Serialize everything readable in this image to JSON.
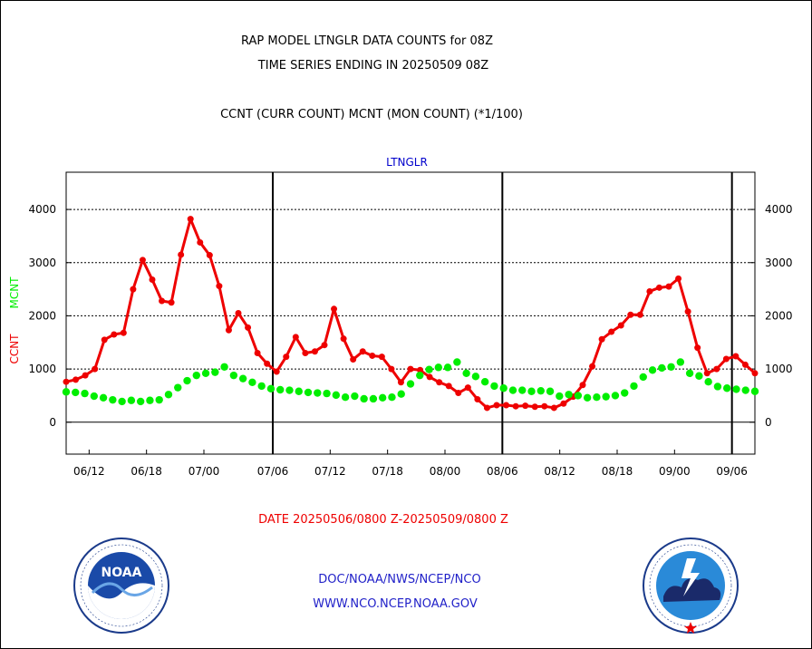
{
  "header": {
    "line1": "RAP MODEL LTNGLR DATA COUNTS for 08Z",
    "line2": "TIME SERIES ENDING IN 20250509 08Z",
    "line3": "CCNT (CURR COUNT) MCNT (MON COUNT) (*1/100)"
  },
  "footer": {
    "date_range": "DATE 20250506/0800 Z-20250509/0800 Z",
    "agency": "DOC/NOAA/NWS/NCEP/NCO",
    "website": "WWW.NCO.NCEP.NOAA.GOV"
  },
  "logos": {
    "left": {
      "name": "noaa-logo",
      "text": "NOAA",
      "ring_text": "NATIONAL OCEANIC AND ATMOSPHERIC ADMINISTRATION · U.S. DEPARTMENT OF COMMERCE"
    },
    "right": {
      "name": "nws-logo",
      "ring_text": "NATIONAL WEATHER SERVICE"
    }
  },
  "colors": {
    "ccnt": "#ee0000",
    "mcnt": "#00ee00",
    "title": "#0000cc",
    "axis": "#000000"
  },
  "chart_data": {
    "type": "line",
    "title": "LTNGLR",
    "ylabel_ccnt": "CCNT",
    "ylabel_mcnt": "MCNT",
    "ylim": [
      -600,
      4700
    ],
    "yticks": [
      0,
      1000,
      2000,
      3000,
      4000
    ],
    "xlim": [
      0,
      60
    ],
    "xticks": [
      {
        "x": 2,
        "label": "06/12"
      },
      {
        "x": 7,
        "label": "06/18"
      },
      {
        "x": 12,
        "label": "07/00"
      },
      {
        "x": 18,
        "label": "07/06"
      },
      {
        "x": 23,
        "label": "07/12"
      },
      {
        "x": 28,
        "label": "07/18"
      },
      {
        "x": 33,
        "label": "08/00"
      },
      {
        "x": 38,
        "label": "08/06"
      },
      {
        "x": 43,
        "label": "08/12"
      },
      {
        "x": 48,
        "label": "08/18"
      },
      {
        "x": 53,
        "label": "09/00"
      },
      {
        "x": 58,
        "label": "09/06"
      }
    ],
    "day_boundaries": [
      18,
      38,
      58
    ],
    "series": [
      {
        "name": "CCNT",
        "color": "#ee0000",
        "values": [
          760,
          800,
          880,
          1000,
          1550,
          1650,
          1680,
          2500,
          3050,
          2680,
          2280,
          2250,
          3150,
          3820,
          3380,
          3140,
          2560,
          1730,
          2050,
          1780,
          1300,
          1100,
          950,
          1230,
          1600,
          1300,
          1330,
          1450,
          2130,
          1570,
          1180,
          1330,
          1250,
          1230,
          1000,
          750,
          1000,
          980,
          850,
          750,
          680,
          550,
          650,
          430,
          270,
          320,
          320,
          300,
          310,
          290,
          300,
          270,
          350,
          480,
          700,
          1050,
          1560,
          1700,
          1820,
          2020,
          2020,
          2460,
          2530,
          2550,
          2700,
          2080,
          1400,
          920,
          1000,
          1190,
          1240,
          1080,
          920
        ]
      },
      {
        "name": "MCNT",
        "color": "#00ee00",
        "values": [
          570,
          560,
          540,
          490,
          460,
          420,
          390,
          410,
          390,
          410,
          420,
          520,
          650,
          780,
          880,
          920,
          940,
          1040,
          880,
          820,
          750,
          680,
          630,
          610,
          600,
          580,
          560,
          550,
          540,
          510,
          470,
          490,
          440,
          440,
          460,
          470,
          530,
          720,
          880,
          990,
          1030,
          1030,
          1130,
          920,
          860,
          760,
          680,
          640,
          600,
          600,
          580,
          590,
          580,
          490,
          520,
          500,
          460,
          470,
          480,
          500,
          550,
          680,
          850,
          980,
          1020,
          1040,
          1130,
          920,
          870,
          760,
          670,
          640,
          620,
          600,
          580
        ]
      }
    ]
  }
}
